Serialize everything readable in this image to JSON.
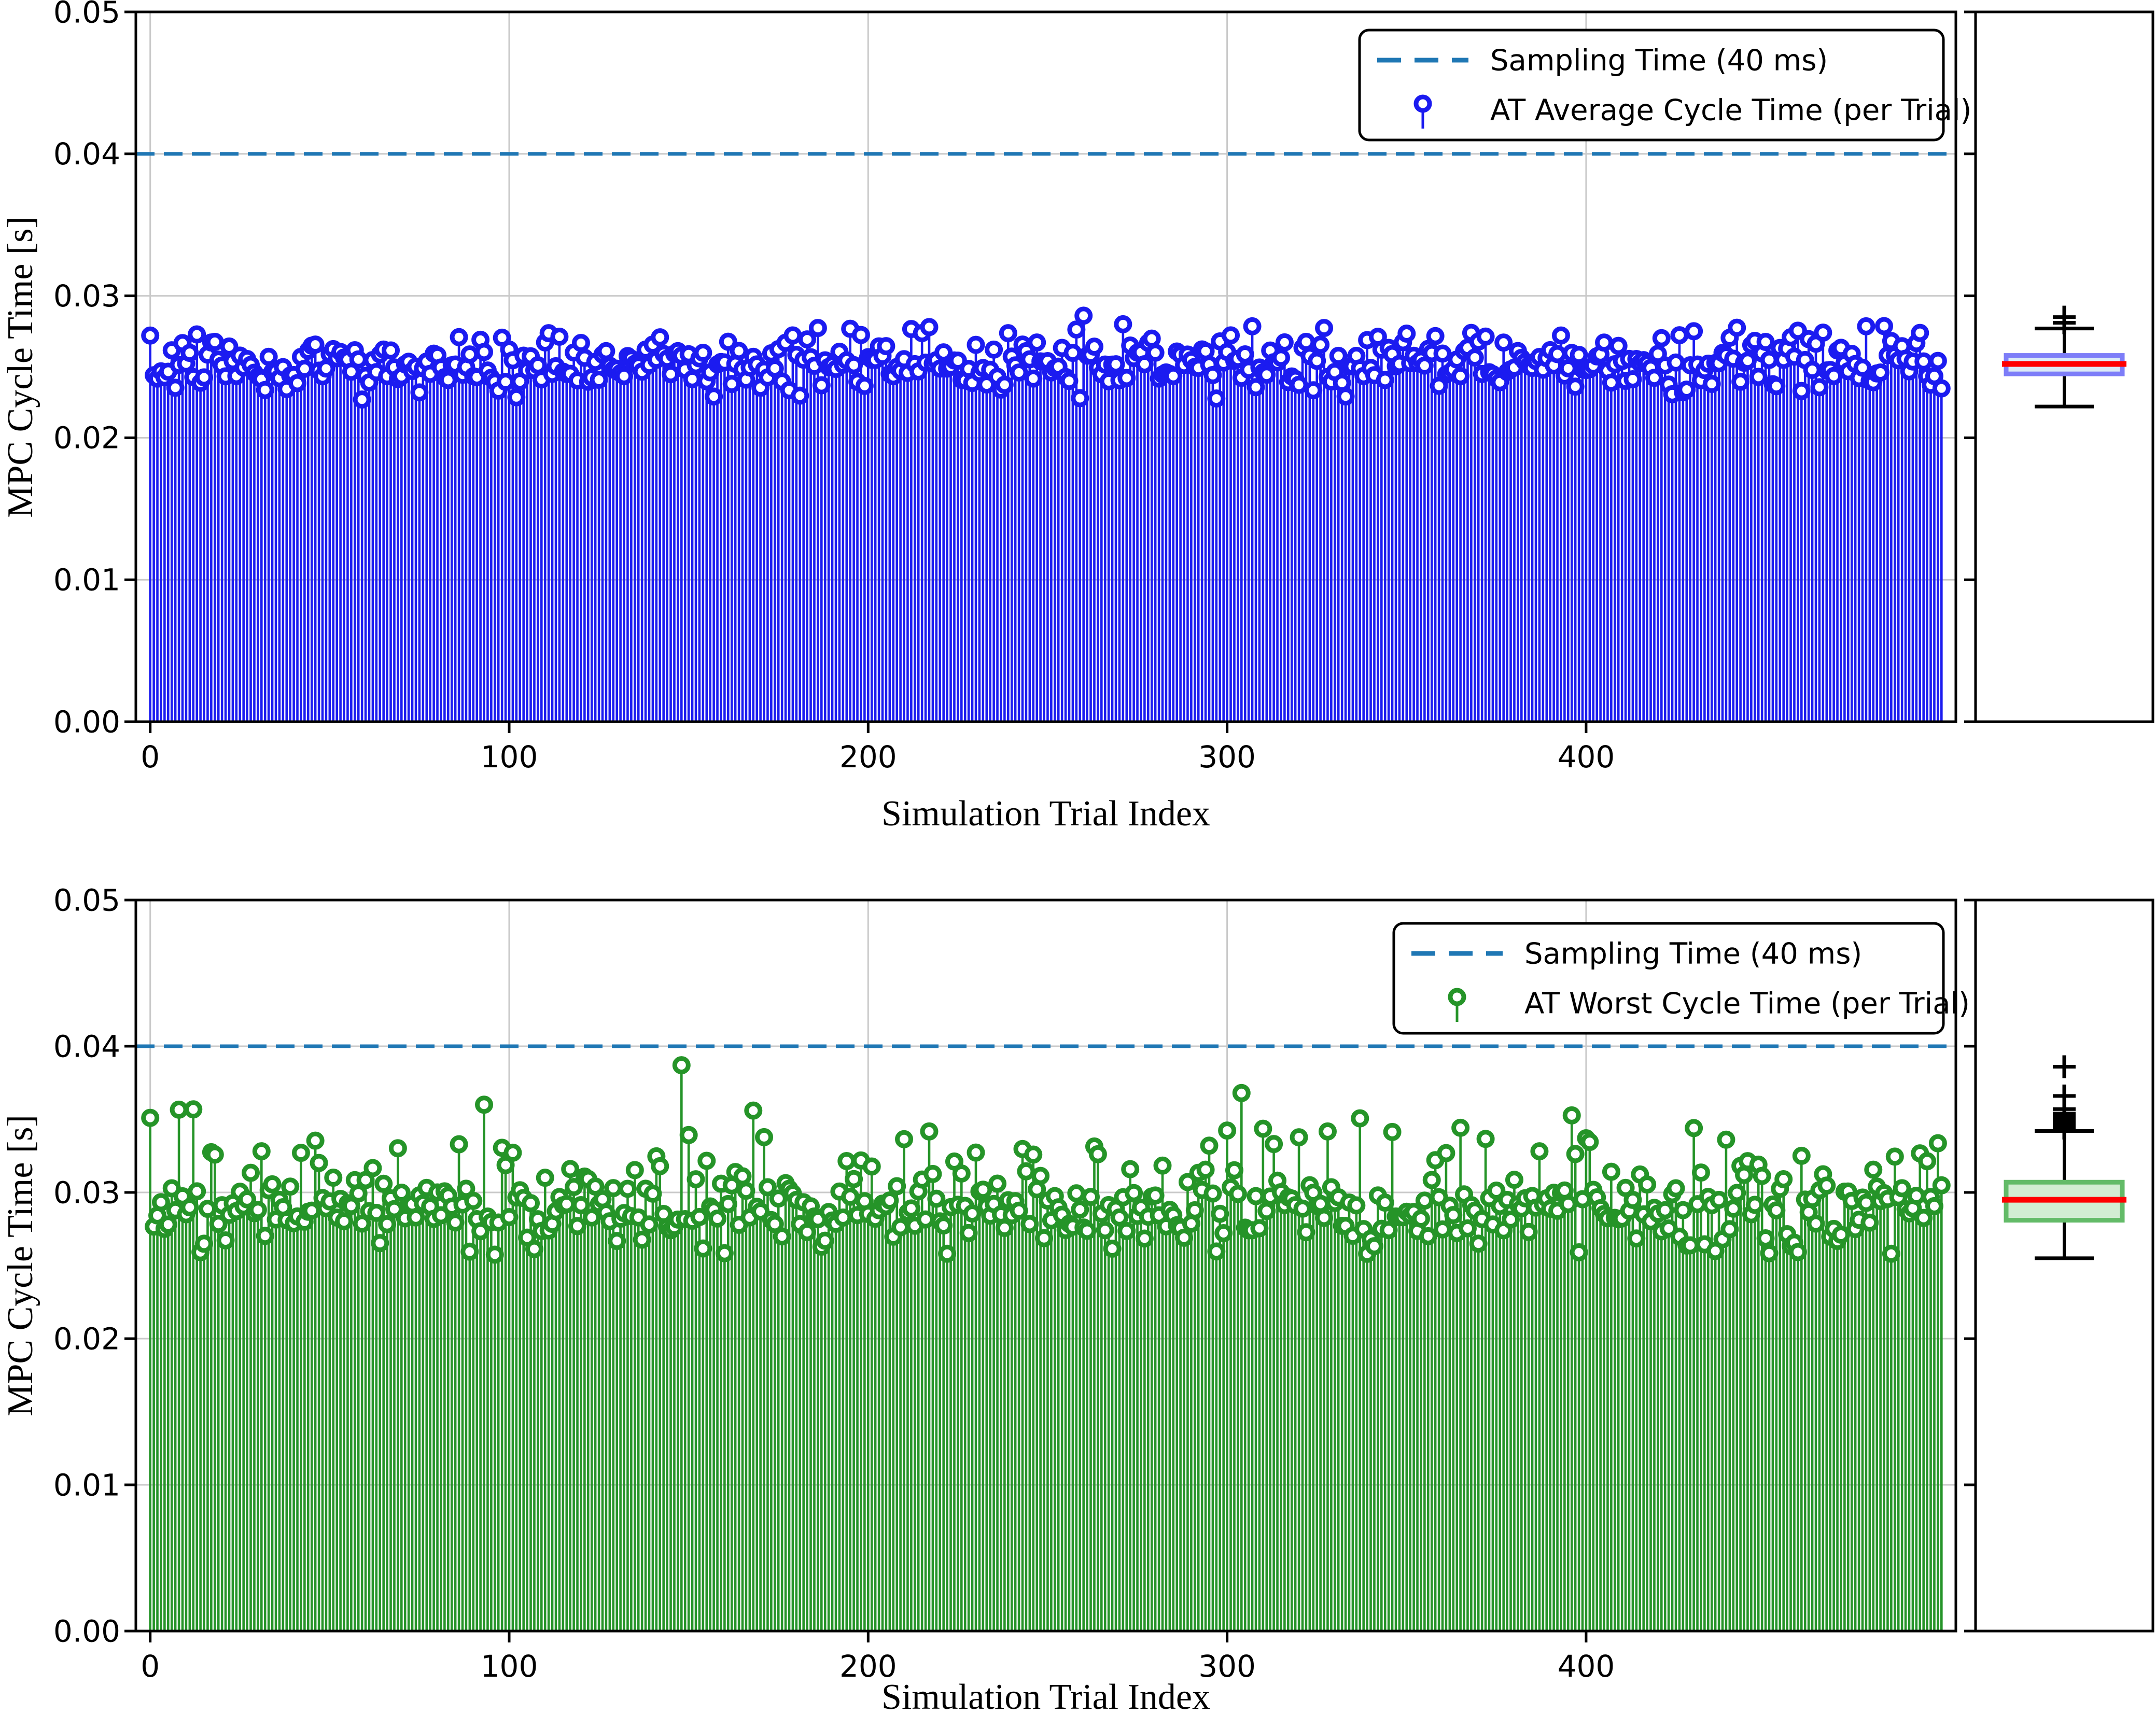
{
  "figure": {
    "background": "#ffffff",
    "grid_color": "#c9c9c9",
    "spine_color": "#000000"
  },
  "chart_data": [
    {
      "type": "stem",
      "xlabel": "Simulation Trial Index",
      "ylabel": "MPC Cycle Time [s]",
      "xlim": [
        -4,
        503
      ],
      "ylim": [
        0,
        0.05
      ],
      "xticks": [
        0,
        100,
        200,
        300,
        400
      ],
      "yticks": [
        0,
        0.01,
        0.02,
        0.03,
        0.04,
        0.05
      ],
      "ytick_labels": [
        "0.00",
        "0.01",
        "0.02",
        "0.03",
        "0.04",
        "0.05"
      ],
      "grid": true,
      "legend_position": "upper right",
      "reference_line": {
        "label": "Sampling Time (40 ms)",
        "y": 0.04,
        "color": "#1f77b4",
        "linestyle": "dashed"
      },
      "series": {
        "label": "AT Average Cycle Time (per Trial)",
        "color": "#1b1bf0",
        "marker": "open-circle",
        "n": 500,
        "x_range": [
          0,
          499
        ],
        "distribution": {
          "seed": 1337,
          "mean": 0.0253,
          "std": 0.00105,
          "clip_min": 0.0226,
          "clip_max": 0.0279,
          "tail_prob": 0.0,
          "tail_min": 0.0,
          "tail_max": 0.0
        },
        "notable_points": [
          {
            "x": 260,
            "v": 0.0286
          },
          {
            "x": 271,
            "v": 0.028
          },
          {
            "x": 217,
            "v": 0.0278
          },
          {
            "x": 0,
            "v": 0.0272
          }
        ]
      },
      "boxplot": {
        "whisker_low": 0.0222,
        "q1": 0.0245,
        "median": 0.0252,
        "q3": 0.0258,
        "whisker_high": 0.0277,
        "fliers": [
          0.0281,
          0.0285
        ],
        "box_edge": "#7d7df8",
        "box_fill": "#dcebf6",
        "median_color": "#ff0000",
        "whisker_color": "#000000",
        "flier_marker": "plus"
      }
    },
    {
      "type": "stem",
      "xlabel": "Simulation Trial Index",
      "ylabel": "MPC Cycle Time [s]",
      "xlim": [
        -4,
        503
      ],
      "ylim": [
        0,
        0.05
      ],
      "xticks": [
        0,
        100,
        200,
        300,
        400
      ],
      "yticks": [
        0,
        0.01,
        0.02,
        0.03,
        0.04,
        0.05
      ],
      "ytick_labels": [
        "0.00",
        "0.01",
        "0.02",
        "0.03",
        "0.04",
        "0.05"
      ],
      "grid": true,
      "legend_position": "upper right",
      "reference_line": {
        "label": "Sampling Time (40 ms)",
        "y": 0.04,
        "color": "#1f77b4",
        "linestyle": "dashed"
      },
      "series": {
        "label": "AT Worst Cycle Time (per Trial)",
        "color": "#259428",
        "marker": "open-circle",
        "n": 500,
        "x_range": [
          0,
          499
        ],
        "distribution": {
          "seed": 7331,
          "mean": 0.0288,
          "std": 0.0013,
          "clip_min": 0.0257,
          "clip_max": 0.0358,
          "tail_prob": 0.13,
          "tail_min": 0.0012,
          "tail_max": 0.005
        },
        "notable_points": [
          {
            "x": 0,
            "v": 0.0351
          },
          {
            "x": 93,
            "v": 0.036
          },
          {
            "x": 148,
            "v": 0.0387
          },
          {
            "x": 304,
            "v": 0.0368
          },
          {
            "x": 168,
            "v": 0.0356
          },
          {
            "x": 430,
            "v": 0.0344
          }
        ]
      },
      "boxplot": {
        "whisker_low": 0.0255,
        "q1": 0.0281,
        "median": 0.0295,
        "q3": 0.0307,
        "whisker_high": 0.0342,
        "fliers": [
          0.0344,
          0.0346,
          0.0348,
          0.035,
          0.0352,
          0.0354,
          0.0357,
          0.0366,
          0.0386
        ],
        "box_edge": "#63bb68",
        "box_fill": "#d2edd2",
        "median_color": "#ff0000",
        "whisker_color": "#000000",
        "flier_marker": "plus"
      }
    }
  ]
}
